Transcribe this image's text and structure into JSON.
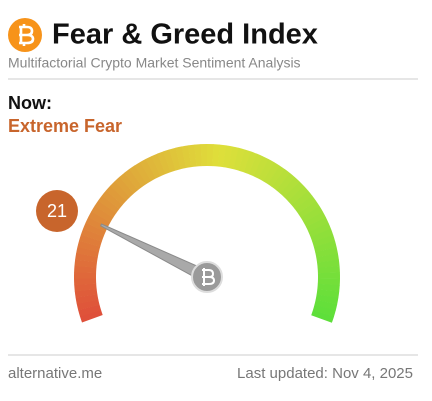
{
  "chart_data": {
    "type": "gauge",
    "title": "Fear & Greed Index",
    "subtitle": "Multifactorial Crypto Market Sentiment Analysis",
    "now_label": "Now:",
    "classification": "Extreme Fear",
    "value": 21,
    "ylim": [
      0,
      100
    ],
    "color": "#c8652c",
    "source": "alternative.me",
    "last_updated": "Last updated: Nov 4, 2025"
  }
}
